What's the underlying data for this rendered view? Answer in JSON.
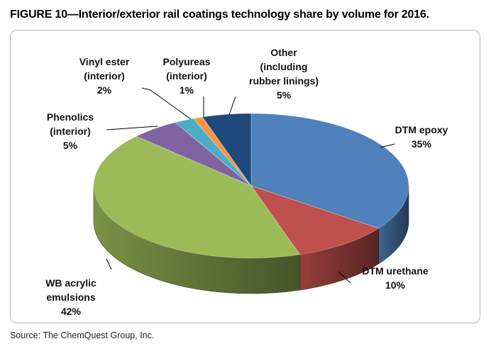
{
  "figure": {
    "title": "FIGURE 10—Interior/exterior rail coatings technology share by volume for 2016.",
    "source": "Source: The ChemQuest Group, Inc."
  },
  "chart_data": {
    "type": "pie",
    "title": "FIGURE 10—Interior/exterior rail coatings technology share by volume for 2016.",
    "style": "3d-exploded-none",
    "slices": [
      {
        "label_lines": [
          "DTM epoxy"
        ],
        "value_label": "35%",
        "value": 35,
        "color": "#4f81bd"
      },
      {
        "label_lines": [
          "DTM urethane"
        ],
        "value_label": "10%",
        "value": 10,
        "color": "#c0504d"
      },
      {
        "label_lines": [
          "WB acrylic",
          "emulsions"
        ],
        "value_label": "42%",
        "value": 42,
        "color": "#9bbb59"
      },
      {
        "label_lines": [
          "Phenolics",
          "(interior)"
        ],
        "value_label": "5%",
        "value": 5,
        "color": "#8064a2"
      },
      {
        "label_lines": [
          "Vinyl ester",
          "(interior)"
        ],
        "value_label": "2%",
        "value": 2,
        "color": "#4bacc6"
      },
      {
        "label_lines": [
          "Polyureas",
          "(interior)"
        ],
        "value_label": "1%",
        "value": 1,
        "color": "#f79646"
      },
      {
        "label_lines": [
          "Other",
          "(including",
          "rubber linings)"
        ],
        "value_label": "5%",
        "value": 5,
        "color": "#1f497d"
      }
    ]
  }
}
